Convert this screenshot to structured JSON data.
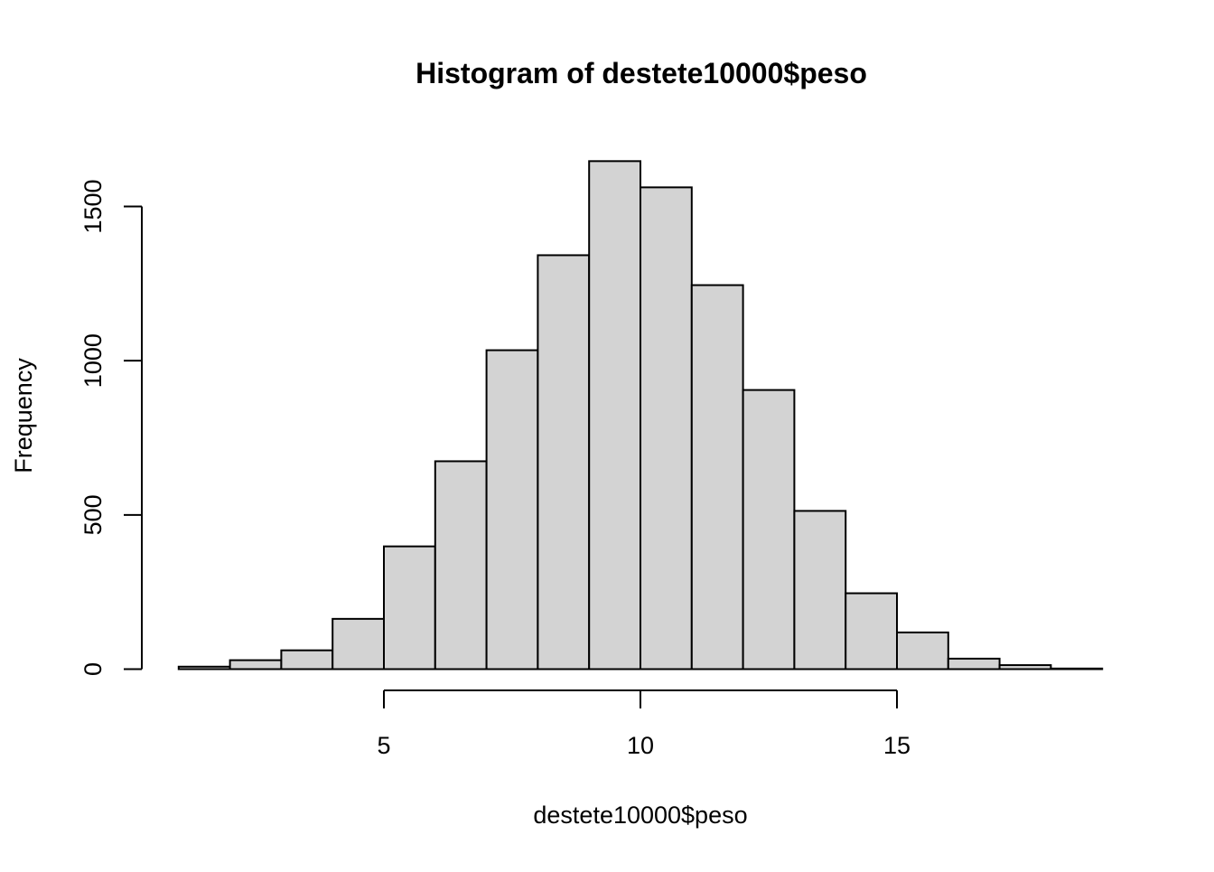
{
  "chart_data": {
    "type": "bar",
    "title": "Histogram of destete10000$peso",
    "xlabel": "destete10000$peso",
    "ylabel": "Frequency",
    "bin_edges": [
      1,
      2,
      3,
      4,
      5,
      6,
      7,
      8,
      9,
      10,
      11,
      12,
      13,
      14,
      15,
      16,
      17,
      18,
      19
    ],
    "values": [
      8,
      29,
      61,
      163,
      398,
      674,
      1034,
      1342,
      1647,
      1562,
      1245,
      905,
      513,
      246,
      119,
      34,
      13,
      2
    ],
    "xlim": [
      1,
      19
    ],
    "ylim": [
      0,
      1650
    ],
    "x_ticks": [
      5,
      10,
      15
    ],
    "x_tick_labels": [
      "5",
      "10",
      "15"
    ],
    "y_ticks": [
      0,
      500,
      1000,
      1500
    ],
    "y_tick_labels": [
      "0",
      "500",
      "1000",
      "1500"
    ],
    "bar_color": "#d3d3d3",
    "edge_color": "#000000",
    "grid": false
  }
}
